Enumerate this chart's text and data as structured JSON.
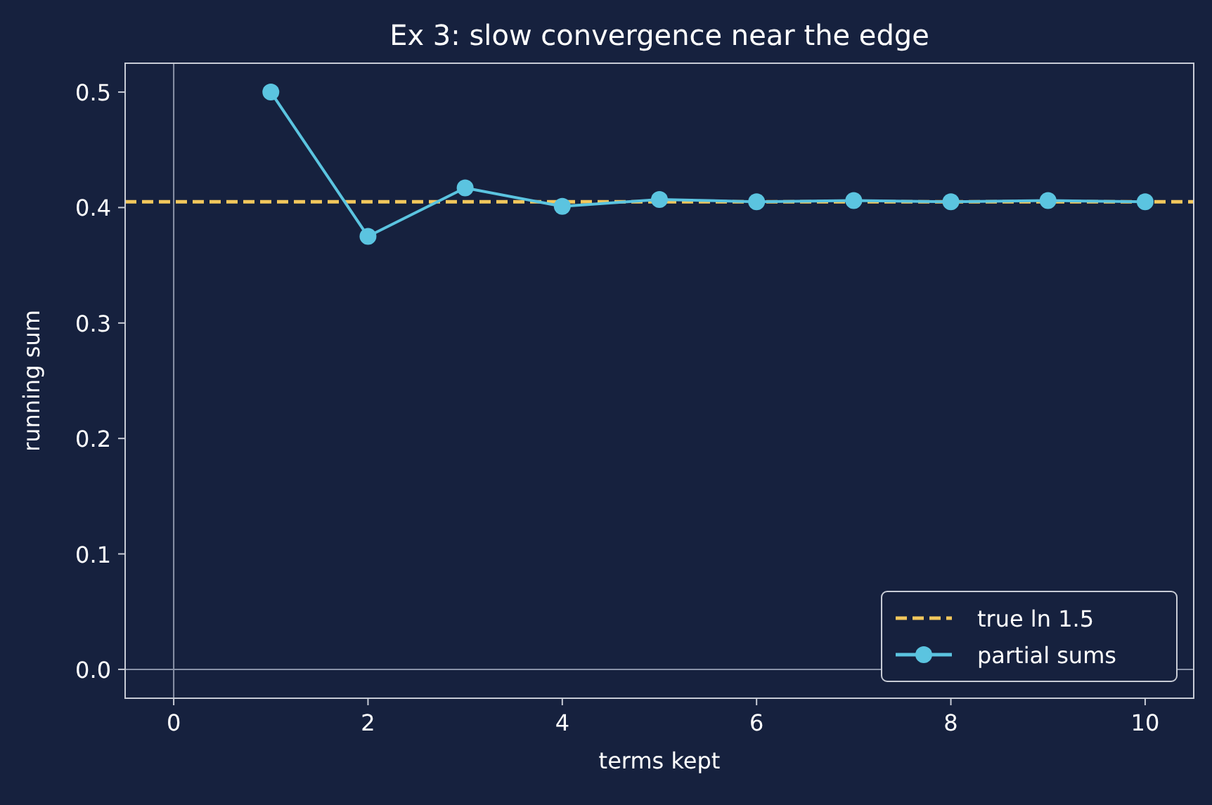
{
  "chart_data": {
    "type": "line",
    "title": "Ex 3: slow convergence near the edge",
    "xlabel": "terms kept",
    "ylabel": "running sum",
    "x": [
      1,
      2,
      3,
      4,
      5,
      6,
      7,
      8,
      9,
      10
    ],
    "series": [
      {
        "name": "partial sums",
        "color": "#5bc4e0",
        "values": [
          0.5,
          0.375,
          0.417,
          0.401,
          0.407,
          0.405,
          0.406,
          0.405,
          0.406,
          0.405
        ]
      }
    ],
    "ref_lines": [
      {
        "axis": "y",
        "value": 0.405,
        "label": "true ln 1.5",
        "color": "#f2c75c",
        "line_style": "dashed"
      },
      {
        "axis": "x",
        "value": 0,
        "color": "#8a93a8",
        "line_style": "solid"
      },
      {
        "axis": "y",
        "value": 0,
        "color": "#8a93a8",
        "line_style": "solid"
      }
    ],
    "xlim": [
      -0.5,
      10.5
    ],
    "xticks": [
      0,
      2,
      4,
      6,
      8,
      10
    ],
    "ylim": [
      -0.025,
      0.525
    ],
    "yticks": [
      {
        "value": 0,
        "label": "0.0"
      },
      {
        "value": 0.1,
        "label": "0.1"
      },
      {
        "value": 0.2,
        "label": "0.2"
      },
      {
        "value": 0.3,
        "label": "0.3"
      },
      {
        "value": 0.4,
        "label": "0.4"
      },
      {
        "value": 0.5,
        "label": "0.5"
      }
    ],
    "marker": "circle",
    "line_style": "solid",
    "legend": "bottom right",
    "grid": false
  }
}
